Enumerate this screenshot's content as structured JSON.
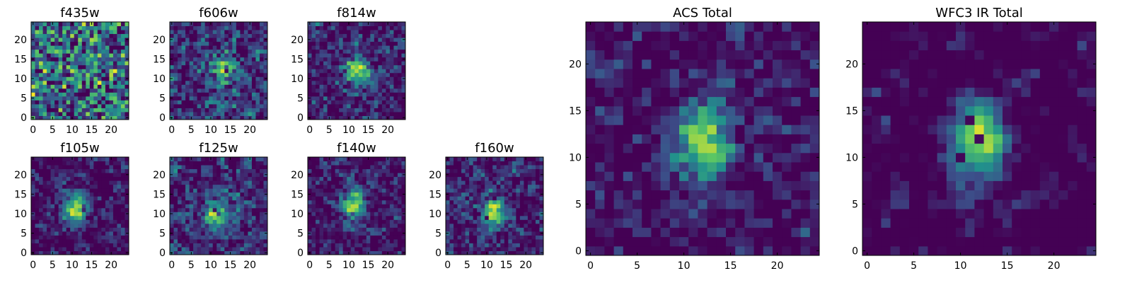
{
  "figure": {
    "colormap": [
      "#440154",
      "#3b528b",
      "#21918c",
      "#5ec962",
      "#fde725"
    ],
    "frame_color": "#000000",
    "background": "#ffffff"
  },
  "chart_data": [
    {
      "id": "f435w",
      "type": "heatmap",
      "title": "f435w",
      "grid": false,
      "xlim": [
        0,
        25
      ],
      "ylim": [
        0,
        25
      ],
      "xticks": [
        0,
        5,
        10,
        15,
        20
      ],
      "yticks": [
        0,
        5,
        10,
        15,
        20
      ],
      "grid_size": [
        25,
        25
      ],
      "peak": [
        12,
        12
      ],
      "peak_strength": 0.05,
      "noise_level": 0.95,
      "seed": 435
    },
    {
      "id": "f606w",
      "type": "heatmap",
      "title": "f606w",
      "grid": false,
      "xlim": [
        0,
        25
      ],
      "ylim": [
        0,
        25
      ],
      "xticks": [
        0,
        5,
        10,
        15,
        20
      ],
      "yticks": [
        0,
        5,
        10,
        15,
        20
      ],
      "grid_size": [
        25,
        25
      ],
      "peak": [
        13,
        12
      ],
      "peak_strength": 0.35,
      "noise_level": 0.65,
      "seed": 606
    },
    {
      "id": "f814w",
      "type": "heatmap",
      "title": "f814w",
      "grid": false,
      "xlim": [
        0,
        25
      ],
      "ylim": [
        0,
        25
      ],
      "xticks": [
        0,
        5,
        10,
        15,
        20
      ],
      "yticks": [
        0,
        5,
        10,
        15,
        20
      ],
      "grid_size": [
        25,
        25
      ],
      "peak": [
        12,
        12
      ],
      "peak_strength": 0.45,
      "noise_level": 0.6,
      "seed": 814
    },
    {
      "id": "f105w",
      "type": "heatmap",
      "title": "f105w",
      "grid": false,
      "xlim": [
        0,
        25
      ],
      "ylim": [
        0,
        25
      ],
      "xticks": [
        0,
        5,
        10,
        15,
        20
      ],
      "yticks": [
        0,
        5,
        10,
        15,
        20
      ],
      "grid_size": [
        25,
        25
      ],
      "peak": [
        11,
        11
      ],
      "peak_strength": 0.55,
      "noise_level": 0.5,
      "seed": 105
    },
    {
      "id": "f125w",
      "type": "heatmap",
      "title": "f125w",
      "grid": false,
      "xlim": [
        0,
        25
      ],
      "ylim": [
        0,
        25
      ],
      "xticks": [
        0,
        5,
        10,
        15,
        20
      ],
      "yticks": [
        0,
        5,
        10,
        15,
        20
      ],
      "grid_size": [
        25,
        25
      ],
      "peak": [
        11,
        10
      ],
      "peak_strength": 0.4,
      "noise_level": 0.55,
      "seed": 125
    },
    {
      "id": "f140w",
      "type": "heatmap",
      "title": "f140w",
      "grid": false,
      "xlim": [
        0,
        25
      ],
      "ylim": [
        0,
        25
      ],
      "xticks": [
        0,
        5,
        10,
        15,
        20
      ],
      "yticks": [
        0,
        5,
        10,
        15,
        20
      ],
      "grid_size": [
        25,
        25
      ],
      "peak": [
        11,
        12
      ],
      "peak_strength": 0.5,
      "noise_level": 0.5,
      "seed": 140
    },
    {
      "id": "f160w",
      "type": "heatmap",
      "title": "f160w",
      "grid": false,
      "xlim": [
        0,
        25
      ],
      "ylim": [
        0,
        25
      ],
      "xticks": [
        0,
        5,
        10,
        15,
        20
      ],
      "yticks": [
        0,
        5,
        10,
        15,
        20
      ],
      "grid_size": [
        25,
        25
      ],
      "peak": [
        12,
        11
      ],
      "peak_strength": 0.45,
      "noise_level": 0.55,
      "seed": 160
    },
    {
      "id": "acs-total",
      "type": "heatmap",
      "title": "ACS Total",
      "grid": false,
      "xlim": [
        0,
        25
      ],
      "ylim": [
        0,
        25
      ],
      "xticks": [
        0,
        5,
        10,
        15,
        20
      ],
      "yticks": [
        0,
        5,
        10,
        15,
        20
      ],
      "grid_size": [
        25,
        25
      ],
      "peak": [
        12,
        12
      ],
      "peak_strength": 0.55,
      "noise_level": 0.55,
      "seed": 999
    },
    {
      "id": "wfc3-ir-total",
      "type": "heatmap",
      "title": "WFC3 IR Total",
      "grid": false,
      "xlim": [
        0,
        25
      ],
      "ylim": [
        0,
        25
      ],
      "xticks": [
        0,
        5,
        10,
        15,
        20
      ],
      "yticks": [
        0,
        5,
        10,
        15,
        20
      ],
      "grid_size": [
        25,
        25
      ],
      "peak": [
        12,
        12
      ],
      "peak_strength": 0.65,
      "noise_level": 0.35,
      "seed": 777
    }
  ]
}
